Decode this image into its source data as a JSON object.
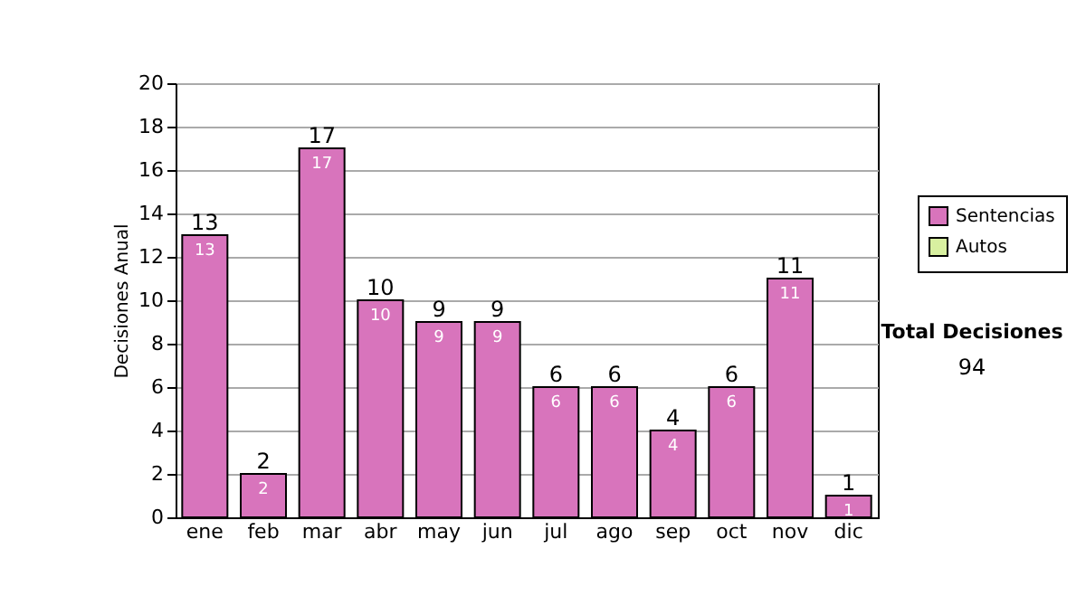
{
  "chart_data": {
    "type": "bar",
    "ylabel": "Decisiones Anual",
    "categories": [
      "ene",
      "feb",
      "mar",
      "abr",
      "may",
      "jun",
      "jul",
      "ago",
      "sep",
      "oct",
      "nov",
      "dic"
    ],
    "series": [
      {
        "name": "Sentencias",
        "color": "#d874bc",
        "values": [
          13,
          2,
          17,
          10,
          9,
          9,
          6,
          6,
          4,
          6,
          11,
          1
        ],
        "value_labels": [
          "13",
          "2",
          "17",
          "10",
          "9",
          "9",
          "6",
          "6",
          "4",
          "6",
          "11",
          "1"
        ]
      },
      {
        "name": "Autos",
        "color": "#d8f0a0",
        "values": [
          null,
          null,
          null,
          null,
          null,
          null,
          null,
          null,
          null,
          null,
          null,
          null
        ]
      }
    ],
    "ylim": [
      0,
      20
    ],
    "yticks": [
      0,
      2,
      4,
      6,
      8,
      10,
      12,
      14,
      16,
      18,
      20
    ],
    "grid": "y",
    "legend": "right",
    "annotations": [
      "Total Decisiones",
      "94",
      {
        "text": "13",
        "x": "ene",
        "y": 13
      },
      {
        "text": "2",
        "x": "feb",
        "y": 2
      },
      {
        "text": "17",
        "x": "mar",
        "y": 17
      },
      {
        "text": "10",
        "x": "abr",
        "y": 10
      },
      {
        "text": "9",
        "x": "may",
        "y": 9
      },
      {
        "text": "9",
        "x": "jun",
        "y": 9
      },
      {
        "text": "6",
        "x": "jul",
        "y": 6
      },
      {
        "text": "6",
        "x": "ago",
        "y": 6
      },
      {
        "text": "4",
        "x": "sep",
        "y": 4
      },
      {
        "text": "6",
        "x": "oct",
        "y": 6
      },
      {
        "text": "11",
        "x": "nov",
        "y": 11
      },
      {
        "text": "1",
        "x": "dic",
        "y": 1
      }
    ]
  }
}
